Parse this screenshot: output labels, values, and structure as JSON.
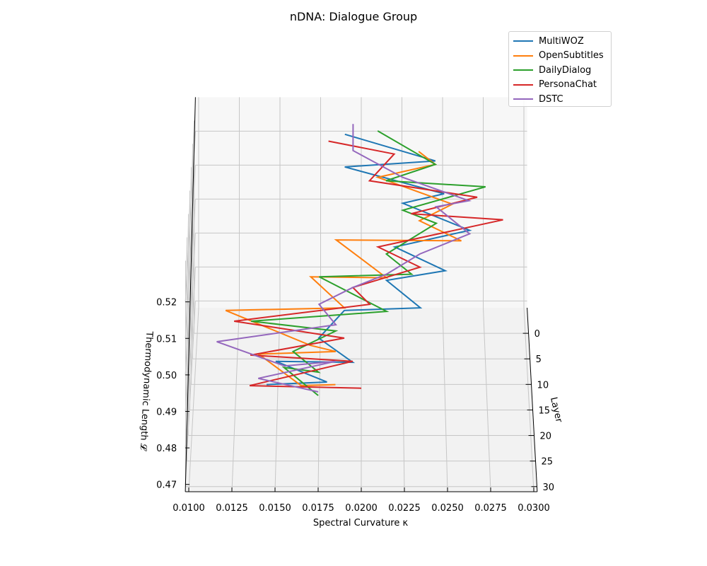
{
  "chart_data": {
    "type": "line3d",
    "title": "nDNA: Dialogue Group",
    "xlabel": "Spectral Curvature κ",
    "ylabel": "Layer",
    "zlabel": "Thermodynamic Length 𝓛",
    "xlim": [
      0.0098,
      0.0302
    ],
    "ylim": [
      -5,
      31
    ],
    "zlim": [
      0.468,
      0.53
    ],
    "x_ticks": [
      "0.0100",
      "0.0125",
      "0.0150",
      "0.0175",
      "0.0200",
      "0.0225",
      "0.0250",
      "0.0275",
      "0.0300"
    ],
    "y_ticks": [
      "0",
      "5",
      "10",
      "15",
      "20",
      "25",
      "30"
    ],
    "z_ticks": [
      "0.47",
      "0.48",
      "0.49",
      "0.50",
      "0.51",
      "0.52"
    ],
    "grid": true,
    "legend_position": "top-right",
    "point_format": [
      "kappa",
      "layer",
      "length"
    ],
    "series": [
      {
        "name": "MultiWOZ",
        "color": "#1f77b4",
        "points": [
          [
            0.019,
            0,
            0.526
          ],
          [
            0.0245,
            2,
            0.521
          ],
          [
            0.019,
            4,
            0.522
          ],
          [
            0.025,
            6,
            0.517
          ],
          [
            0.0225,
            8,
            0.517
          ],
          [
            0.0265,
            10,
            0.512
          ],
          [
            0.022,
            12,
            0.51
          ],
          [
            0.025,
            14,
            0.506
          ],
          [
            0.0215,
            16,
            0.506
          ],
          [
            0.0235,
            18,
            0.501
          ],
          [
            0.019,
            20,
            0.503
          ],
          [
            0.0175,
            22,
            0.498
          ],
          [
            0.0195,
            24,
            0.494
          ],
          [
            0.015,
            26,
            0.497
          ],
          [
            0.018,
            28,
            0.494
          ],
          [
            0.0145,
            30,
            0.496
          ]
        ]
      },
      {
        "name": "OpenSubtitles",
        "color": "#ff7f0e",
        "points": [
          [
            0.0235,
            0,
            0.521
          ],
          [
            0.0245,
            2,
            0.52
          ],
          [
            0.021,
            4,
            0.519
          ],
          [
            0.0255,
            6,
            0.514
          ],
          [
            0.0235,
            8,
            0.512
          ],
          [
            0.026,
            10,
            0.509
          ],
          [
            0.0185,
            12,
            0.512
          ],
          [
            0.0215,
            14,
            0.504
          ],
          [
            0.017,
            16,
            0.507
          ],
          [
            0.019,
            18,
            0.501
          ],
          [
            0.012,
            20,
            0.503
          ],
          [
            0.017,
            22,
            0.496
          ],
          [
            0.0185,
            24,
            0.497
          ],
          [
            0.014,
            26,
            0.499
          ],
          [
            0.0165,
            28,
            0.493
          ],
          [
            0.0185,
            30,
            0.496
          ]
        ]
      },
      {
        "name": "DailyDialog",
        "color": "#2ca02c",
        "points": [
          [
            0.021,
            0,
            0.527
          ],
          [
            0.0245,
            2,
            0.52
          ],
          [
            0.0215,
            4,
            0.518
          ],
          [
            0.0275,
            6,
            0.519
          ],
          [
            0.0225,
            8,
            0.515
          ],
          [
            0.0245,
            10,
            0.514
          ],
          [
            0.0215,
            12,
            0.508
          ],
          [
            0.023,
            14,
            0.505
          ],
          [
            0.0175,
            16,
            0.507
          ],
          [
            0.0215,
            18,
            0.5
          ],
          [
            0.0135,
            20,
            0.5
          ],
          [
            0.0185,
            22,
            0.5
          ],
          [
            0.016,
            24,
            0.497
          ],
          [
            0.0175,
            26,
            0.494
          ],
          [
            0.0155,
            28,
            0.498
          ],
          [
            0.0175,
            30,
            0.493
          ]
        ]
      },
      {
        "name": "PersonaChat",
        "color": "#d62728",
        "points": [
          [
            0.018,
            0,
            0.524
          ],
          [
            0.022,
            2,
            0.523
          ],
          [
            0.0205,
            4,
            0.518
          ],
          [
            0.027,
            6,
            0.516
          ],
          [
            0.023,
            8,
            0.514
          ],
          [
            0.0285,
            10,
            0.515
          ],
          [
            0.021,
            12,
            0.51
          ],
          [
            0.0235,
            14,
            0.507
          ],
          [
            0.0195,
            16,
            0.504
          ],
          [
            0.0205,
            18,
            0.502
          ],
          [
            0.0125,
            20,
            0.5
          ],
          [
            0.019,
            22,
            0.498
          ],
          [
            0.0135,
            24,
            0.496
          ],
          [
            0.0195,
            26,
            0.497
          ],
          [
            0.0135,
            28,
            0.493
          ],
          [
            0.02,
            30,
            0.495
          ]
        ]
      },
      {
        "name": "DSTC",
        "color": "#9467bd",
        "points": [
          [
            0.0195,
            0,
            0.529
          ],
          [
            0.0195,
            2,
            0.524
          ],
          [
            0.0225,
            4,
            0.519
          ],
          [
            0.0265,
            6,
            0.515
          ],
          [
            0.0245,
            8,
            0.516
          ],
          [
            0.0265,
            10,
            0.511
          ],
          [
            0.0235,
            12,
            0.508
          ],
          [
            0.0215,
            14,
            0.505
          ],
          [
            0.0195,
            16,
            0.504
          ],
          [
            0.0175,
            18,
            0.502
          ],
          [
            0.0185,
            20,
            0.499
          ],
          [
            0.0115,
            22,
            0.497
          ],
          [
            0.0155,
            24,
            0.493
          ],
          [
            0.0185,
            26,
            0.497
          ],
          [
            0.014,
            28,
            0.495
          ],
          [
            0.0175,
            30,
            0.494
          ]
        ]
      }
    ]
  }
}
